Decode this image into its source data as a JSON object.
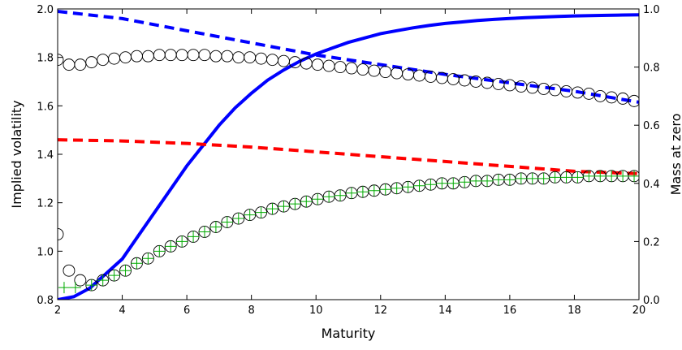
{
  "chart_data": {
    "type": "line",
    "xlabel": "Maturity",
    "ylabel": "Implied volatility",
    "ylabel_right": "Mass at zero",
    "xlim": [
      2,
      20
    ],
    "ylim": [
      0.8,
      2.0
    ],
    "ylim_right": [
      0.0,
      1.0
    ],
    "xticks": [
      "2",
      "4",
      "6",
      "8",
      "10",
      "12",
      "14",
      "16",
      "18",
      "20"
    ],
    "yticks": [
      "0.8",
      "1.0",
      "1.2",
      "1.4",
      "1.6",
      "1.8",
      "2.0"
    ],
    "yticks_right": [
      "0.0",
      "0.2",
      "0.4",
      "0.6",
      "0.8",
      "1.0"
    ],
    "grid": false,
    "colors": {
      "blue": "#0000ff",
      "red": "#ff0000",
      "green": "#00aa00",
      "black": "#000000"
    },
    "series": [
      {
        "axis": "right",
        "style": "solid",
        "color": "#0000ff",
        "x": [
          2,
          2.5,
          3,
          3.5,
          4,
          4.5,
          5,
          5.5,
          6,
          6.5,
          7,
          7.5,
          8,
          8.5,
          9,
          9.5,
          10,
          10.5,
          11,
          11.5,
          12,
          12.5,
          13,
          13.5,
          14,
          14.5,
          15,
          15.5,
          16,
          16.5,
          17,
          17.5,
          18,
          18.5,
          19,
          19.5,
          20
        ],
        "y": [
          0.0,
          0.01,
          0.04,
          0.09,
          0.14,
          0.22,
          0.3,
          0.38,
          0.46,
          0.53,
          0.6,
          0.66,
          0.71,
          0.755,
          0.79,
          0.82,
          0.845,
          0.865,
          0.885,
          0.9,
          0.915,
          0.925,
          0.935,
          0.943,
          0.95,
          0.955,
          0.96,
          0.964,
          0.967,
          0.97,
          0.972,
          0.974,
          0.976,
          0.977,
          0.978,
          0.979,
          0.98
        ]
      },
      {
        "axis": "left",
        "style": "dashed",
        "color": "#0000ff",
        "x": [
          2,
          4,
          6,
          8,
          10,
          12,
          14,
          16,
          18,
          20
        ],
        "y": [
          1.99,
          1.96,
          1.91,
          1.86,
          1.81,
          1.77,
          1.73,
          1.695,
          1.66,
          1.615
        ]
      },
      {
        "axis": "left",
        "style": "dashed",
        "color": "#ff0000",
        "x": [
          2,
          4,
          6,
          8,
          10,
          12,
          14,
          16,
          18,
          20
        ],
        "y": [
          1.46,
          1.455,
          1.445,
          1.43,
          1.41,
          1.39,
          1.37,
          1.35,
          1.33,
          1.32
        ]
      },
      {
        "axis": "left",
        "style": "markers-circle",
        "color": "#000000",
        "x": [
          2,
          2.35,
          2.7,
          3.05,
          3.4,
          3.75,
          4.1,
          4.45,
          4.8,
          5.15,
          5.5,
          5.85,
          6.2,
          6.55,
          6.9,
          7.25,
          7.6,
          7.95,
          8.3,
          8.65,
          9.0,
          9.35,
          9.7,
          10.05,
          10.4,
          10.75,
          11.1,
          11.45,
          11.8,
          12.15,
          12.5,
          12.85,
          13.2,
          13.55,
          13.9,
          14.25,
          14.6,
          14.95,
          15.3,
          15.65,
          16.0,
          16.35,
          16.7,
          17.05,
          17.4,
          17.75,
          18.1,
          18.45,
          18.8,
          19.15,
          19.5,
          19.85
        ],
        "y": [
          1.79,
          1.77,
          1.77,
          1.78,
          1.79,
          1.795,
          1.8,
          1.805,
          1.805,
          1.81,
          1.81,
          1.81,
          1.81,
          1.81,
          1.805,
          1.805,
          1.8,
          1.8,
          1.795,
          1.79,
          1.785,
          1.78,
          1.775,
          1.77,
          1.765,
          1.76,
          1.755,
          1.75,
          1.745,
          1.74,
          1.735,
          1.73,
          1.725,
          1.72,
          1.715,
          1.71,
          1.705,
          1.7,
          1.695,
          1.69,
          1.685,
          1.68,
          1.675,
          1.67,
          1.665,
          1.66,
          1.655,
          1.65,
          1.64,
          1.635,
          1.63,
          1.62
        ]
      },
      {
        "axis": "left",
        "style": "markers-circle",
        "color": "#000000",
        "x": [
          2,
          2.35,
          2.7,
          3.05,
          3.4,
          3.75,
          4.1,
          4.45,
          4.8,
          5.15,
          5.5,
          5.85,
          6.2,
          6.55,
          6.9,
          7.25,
          7.6,
          7.95,
          8.3,
          8.65,
          9.0,
          9.35,
          9.7,
          10.05,
          10.4,
          10.75,
          11.1,
          11.45,
          11.8,
          12.15,
          12.5,
          12.85,
          13.2,
          13.55,
          13.9,
          14.25,
          14.6,
          14.95,
          15.3,
          15.65,
          16.0,
          16.35,
          16.7,
          17.05,
          17.4,
          17.75,
          18.1,
          18.45,
          18.8,
          19.15,
          19.5,
          19.85
        ],
        "y": [
          1.07,
          0.92,
          0.88,
          0.86,
          0.88,
          0.9,
          0.92,
          0.95,
          0.97,
          1.0,
          1.02,
          1.04,
          1.06,
          1.08,
          1.1,
          1.12,
          1.135,
          1.15,
          1.16,
          1.175,
          1.185,
          1.195,
          1.205,
          1.215,
          1.225,
          1.23,
          1.24,
          1.245,
          1.25,
          1.255,
          1.26,
          1.265,
          1.27,
          1.275,
          1.28,
          1.28,
          1.285,
          1.29,
          1.29,
          1.295,
          1.295,
          1.3,
          1.3,
          1.3,
          1.305,
          1.305,
          1.305,
          1.31,
          1.31,
          1.31,
          1.31,
          1.31
        ]
      },
      {
        "axis": "left",
        "style": "markers-plus",
        "color": "#00aa00",
        "x": [
          2.2,
          2.55,
          3.05,
          3.4,
          3.75,
          4.1,
          4.45,
          4.8,
          5.15,
          5.5,
          5.85,
          6.2,
          6.55,
          6.9,
          7.25,
          7.6,
          7.95,
          8.3,
          8.65,
          9.0,
          9.35,
          9.7,
          10.05,
          10.4,
          10.75,
          11.1,
          11.45,
          11.8,
          12.15,
          12.5,
          12.85,
          13.2,
          13.55,
          13.9,
          14.25,
          14.6,
          14.95,
          15.3,
          15.65,
          16.0,
          16.35,
          16.7,
          17.05,
          17.4,
          17.75,
          18.1,
          18.45,
          18.8,
          19.15,
          19.5,
          19.85
        ],
        "y": [
          0.85,
          0.85,
          0.86,
          0.88,
          0.9,
          0.92,
          0.95,
          0.97,
          1.0,
          1.02,
          1.04,
          1.06,
          1.08,
          1.1,
          1.12,
          1.135,
          1.15,
          1.16,
          1.175,
          1.185,
          1.195,
          1.205,
          1.215,
          1.225,
          1.23,
          1.24,
          1.245,
          1.25,
          1.255,
          1.26,
          1.265,
          1.27,
          1.275,
          1.28,
          1.28,
          1.285,
          1.29,
          1.29,
          1.295,
          1.295,
          1.3,
          1.3,
          1.3,
          1.305,
          1.305,
          1.305,
          1.31,
          1.31,
          1.31,
          1.31,
          1.31
        ]
      }
    ]
  }
}
